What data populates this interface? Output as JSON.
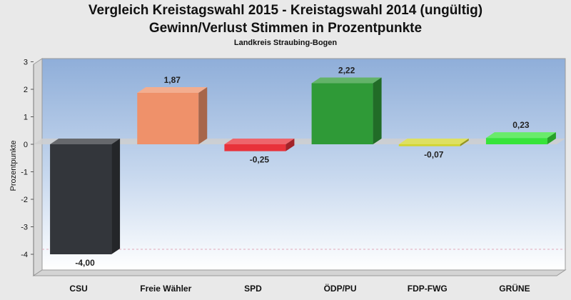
{
  "header": {
    "title_line1": "Vergleich Kreistagswahl 2015 - Kreistagswahl 2014 (ungültig)",
    "title_line2": "Gewinn/Verlust Stimmen in Prozentpunkte",
    "subtitle": "Landkreis Straubing-Bogen"
  },
  "chart_data": {
    "type": "bar",
    "title": "Vergleich Kreistagswahl 2015 - Kreistagswahl 2014 (ungültig)",
    "subtitle": "Gewinn/Verlust Stimmen in Prozentpunkte",
    "caption": "Landkreis Straubing-Bogen",
    "ylabel": "Prozentpunkte",
    "xlabel": "",
    "categories": [
      "CSU",
      "Freie Wähler",
      "SPD",
      "ÖDP/PU",
      "FDP-FWG",
      "GRÜNE"
    ],
    "values": [
      -4.0,
      1.87,
      -0.25,
      2.22,
      -0.07,
      0.23
    ],
    "value_labels": [
      "-4,00",
      "1,87",
      "-0,25",
      "2,22",
      "-0,07",
      "0,23"
    ],
    "colors": [
      "#33363b",
      "#ef916a",
      "#e8323a",
      "#2f9a37",
      "#d3d52e",
      "#37e43a"
    ],
    "yticks": [
      3,
      2,
      1,
      0,
      -1,
      -2,
      -3,
      -4
    ],
    "ylim": [
      -4.5,
      3.0
    ],
    "grid": false,
    "legend": "none",
    "bar_style": "3d"
  }
}
